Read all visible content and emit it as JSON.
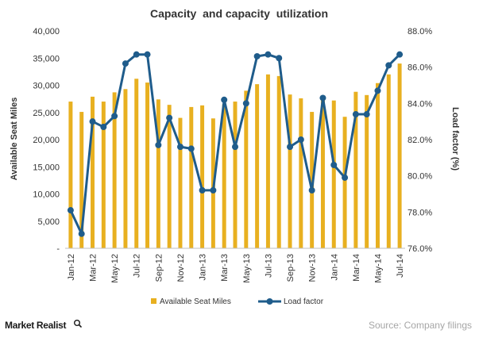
{
  "colors": {
    "bar": "#E8B020",
    "line": "#1F5C8B",
    "axis_text": "#333333",
    "grid": "#D9D9D9",
    "brand_dark": "#1A1A1A",
    "source_text": "#A6A6A6"
  },
  "footer": {
    "brand": "Market Realist",
    "brand_icon": "magnifier-icon",
    "source": "Source: Company filings"
  },
  "chart_data": {
    "type": "bar",
    "title": "Capacity  and capacity  utilization",
    "ylabel": "Available Seat Miles",
    "y2label": "Load factor (%)",
    "ylim": [
      0,
      40000
    ],
    "y2lim": [
      76,
      88
    ],
    "yticks": [
      "-",
      "5,000",
      "10,000",
      "15,000",
      "20,000",
      "25,000",
      "30,000",
      "35,000",
      "40,000"
    ],
    "y2ticks": [
      "76.0%",
      "78.0%",
      "80.0%",
      "82.0%",
      "84.0%",
      "86.0%",
      "88.0%"
    ],
    "categories": [
      "Jan-12",
      "Feb-12",
      "Mar-12",
      "Apr-12",
      "May-12",
      "Jun-12",
      "Jul-12",
      "Aug-12",
      "Sep-12",
      "Oct-12",
      "Nov-12",
      "Dec-12",
      "Jan-13",
      "Feb-13",
      "Mar-13",
      "Apr-13",
      "May-13",
      "Jun-13",
      "Jul-13",
      "Aug-13",
      "Sep-13",
      "Oct-13",
      "Nov-13",
      "Dec-13",
      "Jan-14",
      "Feb-14",
      "Mar-14",
      "Apr-14",
      "May-14",
      "Jun-14",
      "Jul-14"
    ],
    "xticklabels": [
      "Jan-12",
      "",
      "Mar-12",
      "",
      "May-12",
      "",
      "Jul-12",
      "",
      "Sep-12",
      "",
      "Nov-12",
      "",
      "Jan-13",
      "",
      "Mar-13",
      "",
      "May-13",
      "",
      "Jul-13",
      "",
      "Sep-13",
      "",
      "Nov-13",
      "",
      "Jan-14",
      "",
      "Mar-14",
      "",
      "May-14",
      "",
      "Jul-14"
    ],
    "series": [
      {
        "name": "Available Seat Miles",
        "type": "bar",
        "axis": "left",
        "values": [
          27000,
          25100,
          27900,
          27000,
          28700,
          29300,
          31200,
          30500,
          27400,
          26400,
          24000,
          26000,
          26300,
          23900,
          26500,
          27000,
          29000,
          30200,
          32000,
          31700,
          28300,
          27600,
          25100,
          27400,
          27200,
          24200,
          28800,
          28200,
          30400,
          32000,
          34000
        ]
      },
      {
        "name": "Load factor",
        "type": "line",
        "axis": "right",
        "values": [
          78.1,
          76.8,
          83.0,
          82.7,
          83.3,
          86.2,
          86.7,
          86.7,
          81.7,
          83.2,
          81.6,
          81.5,
          79.2,
          79.2,
          84.2,
          81.6,
          84.0,
          86.6,
          86.7,
          86.5,
          81.6,
          82.0,
          79.2,
          84.3,
          80.6,
          79.9,
          83.4,
          83.4,
          84.7,
          86.1,
          86.7
        ]
      }
    ],
    "legend_position": "bottom",
    "grid": false
  }
}
